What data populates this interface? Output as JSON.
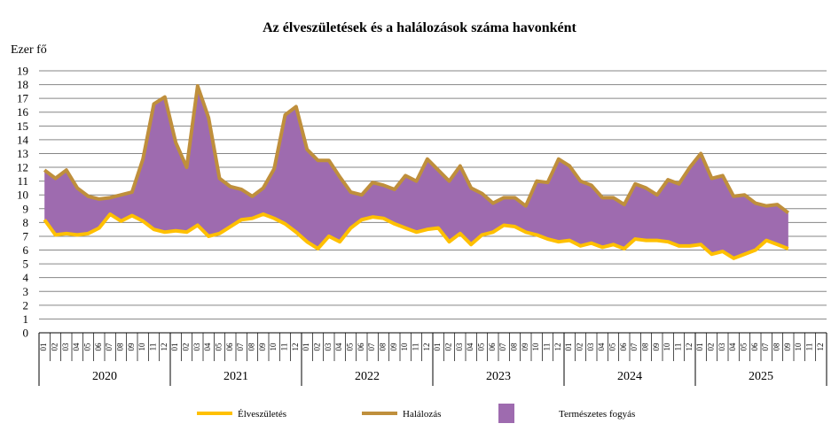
{
  "chart_data": {
    "type": "area",
    "title": "Az élveszületések és a halálozások száma havonként",
    "ylabel": "Ezer fő",
    "ylim": [
      0,
      19
    ],
    "yticks": [
      0,
      1,
      2,
      3,
      4,
      5,
      6,
      7,
      8,
      9,
      10,
      11,
      12,
      13,
      14,
      15,
      16,
      17,
      18,
      19
    ],
    "grid": true,
    "legend_position": "bottom",
    "years": [
      "2020",
      "2021",
      "2022",
      "2023",
      "2024",
      "2025"
    ],
    "month_labels": [
      "01",
      "02",
      "03",
      "04",
      "05",
      "06",
      "07",
      "08",
      "09",
      "10",
      "11",
      "12"
    ],
    "series": [
      {
        "name": "Élveszületés",
        "color": "#FFC000",
        "values": [
          8.2,
          7.1,
          7.2,
          7.1,
          7.2,
          7.6,
          8.6,
          8.1,
          8.5,
          8.1,
          7.5,
          7.3,
          7.4,
          7.3,
          7.8,
          7.0,
          7.2,
          7.7,
          8.2,
          8.3,
          8.6,
          8.3,
          7.9,
          7.3,
          6.6,
          6.1,
          7.0,
          6.6,
          7.6,
          8.2,
          8.4,
          8.3,
          7.9,
          7.6,
          7.3,
          7.5,
          7.6,
          6.6,
          7.2,
          6.4,
          7.1,
          7.3,
          7.8,
          7.7,
          7.3,
          7.1,
          6.8,
          6.6,
          6.7,
          6.3,
          6.5,
          6.2,
          6.4,
          6.1,
          6.8,
          6.7,
          6.7,
          6.6,
          6.3,
          6.3,
          6.4,
          5.7,
          5.9,
          5.4,
          5.7,
          6.0,
          6.7,
          6.4,
          6.1
        ],
        "label_x": "Élveszületés"
      },
      {
        "name": "Halálozás",
        "color": "#BF8F3C",
        "values": [
          11.8,
          11.2,
          11.8,
          10.5,
          9.9,
          9.7,
          9.8,
          10.0,
          10.2,
          12.6,
          16.6,
          17.1,
          13.8,
          12.0,
          17.9,
          15.6,
          11.2,
          10.6,
          10.4,
          9.9,
          10.5,
          11.9,
          15.8,
          16.4,
          13.3,
          12.5,
          12.5,
          11.3,
          10.2,
          10.0,
          10.9,
          10.7,
          10.4,
          11.4,
          11.0,
          12.6,
          11.8,
          11.0,
          12.1,
          10.5,
          10.1,
          9.4,
          9.8,
          9.8,
          9.2,
          11.0,
          10.9,
          12.6,
          12.1,
          11.0,
          10.7,
          9.8,
          9.8,
          9.3,
          10.8,
          10.5,
          10.0,
          11.1,
          10.8,
          12.0,
          13.0,
          11.2,
          11.4,
          9.9,
          10.0,
          9.4,
          9.2,
          9.3,
          8.7
        ]
      },
      {
        "name": "Természetes fogyás",
        "color": "#9E6BAF"
      }
    ]
  }
}
